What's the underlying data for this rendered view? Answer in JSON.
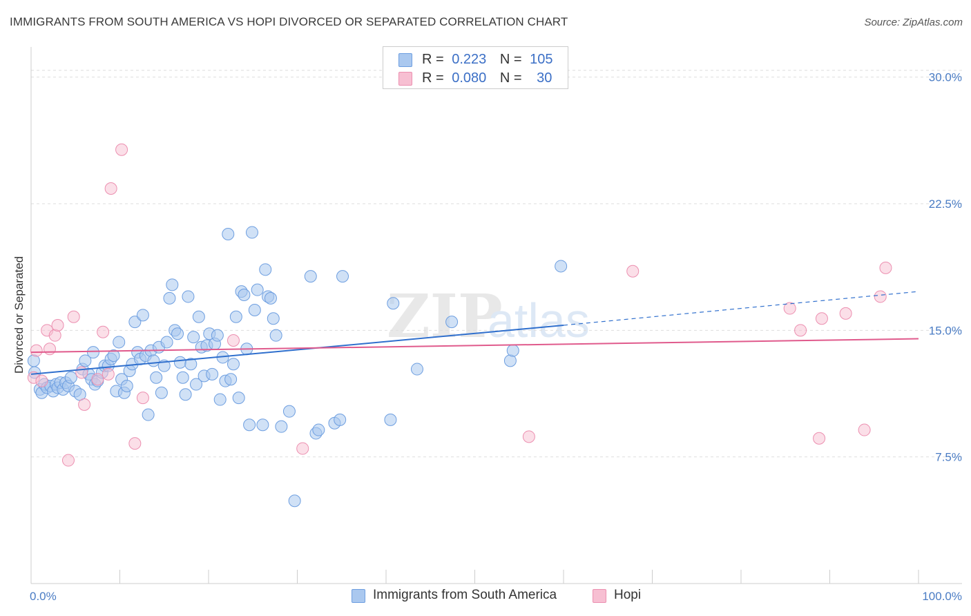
{
  "header": {
    "title": "IMMIGRANTS FROM SOUTH AMERICA VS HOPI DIVORCED OR SEPARATED CORRELATION CHART",
    "source": "Source: ZipAtlas.com"
  },
  "legend": {
    "rows": [
      {
        "r_label": "R =",
        "r_value": "0.223",
        "n_label": "N =",
        "n_value": "105"
      },
      {
        "r_label": "R =",
        "r_value": "0.080",
        "n_label": "N =",
        "n_value": "30"
      }
    ]
  },
  "bottom_legend": {
    "items": [
      {
        "label": "Immigrants from South America"
      },
      {
        "label": "Hopi"
      }
    ]
  },
  "colors": {
    "blue_fill": "#aac8ef",
    "blue_stroke": "#6d9ee0",
    "blue_line": "#2f6fcd",
    "pink_fill": "#f7bfd2",
    "pink_stroke": "#ec8fb0",
    "pink_line": "#e05a8c",
    "grid": "#dddddd",
    "axis_text": "#4a7cc4"
  },
  "chart_data": {
    "type": "scatter",
    "title": "IMMIGRANTS FROM SOUTH AMERICA VS HOPI DIVORCED OR SEPARATED CORRELATION CHART",
    "xlabel": "",
    "ylabel": "Divorced or Separated",
    "xlim": [
      0,
      100
    ],
    "ylim": [
      0,
      31.5
    ],
    "x_tick_labels": [
      "0.0%",
      "100.0%"
    ],
    "y_ticks": [
      7.5,
      15.0,
      22.5,
      30.0
    ],
    "y_tick_labels": [
      "7.5%",
      "15.0%",
      "22.5%",
      "30.0%"
    ],
    "grid": "horizontal dashed",
    "legend_position": "top-center",
    "series": [
      {
        "name": "Immigrants from South America",
        "color": "#aac8ef",
        "trend": {
          "x0": 0,
          "y0": 12.4,
          "x1": 60,
          "y1": 15.3,
          "dashed_to_x": 100,
          "dashed_to_y": 17.3
        },
        "points": [
          [
            0.3,
            13.2
          ],
          [
            0.4,
            12.5
          ],
          [
            1.0,
            11.5
          ],
          [
            1.2,
            11.3
          ],
          [
            1.5,
            11.8
          ],
          [
            1.8,
            11.6
          ],
          [
            2.2,
            11.7
          ],
          [
            2.5,
            11.4
          ],
          [
            2.8,
            11.8
          ],
          [
            3.0,
            11.6
          ],
          [
            3.3,
            11.9
          ],
          [
            3.6,
            11.5
          ],
          [
            3.9,
            11.9
          ],
          [
            4.2,
            11.7
          ],
          [
            4.5,
            12.2
          ],
          [
            5.0,
            11.4
          ],
          [
            5.5,
            11.2
          ],
          [
            5.8,
            12.7
          ],
          [
            6.1,
            13.2
          ],
          [
            6.5,
            12.4
          ],
          [
            6.8,
            12.1
          ],
          [
            7.0,
            13.7
          ],
          [
            7.2,
            11.8
          ],
          [
            7.5,
            12.0
          ],
          [
            8.0,
            12.5
          ],
          [
            8.3,
            12.9
          ],
          [
            8.7,
            12.9
          ],
          [
            9.0,
            13.3
          ],
          [
            9.3,
            13.5
          ],
          [
            9.6,
            11.4
          ],
          [
            9.9,
            14.3
          ],
          [
            10.2,
            12.1
          ],
          [
            10.5,
            11.3
          ],
          [
            10.8,
            11.7
          ],
          [
            11.1,
            12.6
          ],
          [
            11.4,
            13.0
          ],
          [
            11.7,
            15.5
          ],
          [
            12.0,
            13.7
          ],
          [
            12.3,
            13.3
          ],
          [
            12.6,
            15.9
          ],
          [
            12.9,
            13.5
          ],
          [
            13.2,
            10.0
          ],
          [
            13.5,
            13.8
          ],
          [
            13.8,
            13.2
          ],
          [
            14.1,
            12.2
          ],
          [
            14.4,
            14.0
          ],
          [
            14.7,
            11.3
          ],
          [
            15.0,
            12.9
          ],
          [
            15.3,
            14.3
          ],
          [
            15.6,
            16.9
          ],
          [
            15.9,
            17.7
          ],
          [
            16.2,
            15.0
          ],
          [
            16.5,
            14.8
          ],
          [
            16.8,
            13.1
          ],
          [
            17.1,
            12.2
          ],
          [
            17.4,
            11.2
          ],
          [
            17.7,
            17.0
          ],
          [
            18.0,
            13.0
          ],
          [
            18.3,
            14.6
          ],
          [
            18.6,
            11.8
          ],
          [
            18.9,
            15.8
          ],
          [
            19.2,
            14.0
          ],
          [
            19.5,
            12.3
          ],
          [
            19.8,
            14.1
          ],
          [
            20.1,
            14.8
          ],
          [
            20.4,
            12.4
          ],
          [
            20.7,
            14.2
          ],
          [
            21.0,
            14.7
          ],
          [
            21.3,
            10.9
          ],
          [
            21.6,
            13.4
          ],
          [
            21.9,
            12.0
          ],
          [
            22.2,
            20.7
          ],
          [
            22.5,
            12.1
          ],
          [
            22.8,
            13.0
          ],
          [
            23.1,
            15.8
          ],
          [
            23.4,
            11.0
          ],
          [
            23.7,
            17.3
          ],
          [
            24.0,
            17.1
          ],
          [
            24.3,
            13.9
          ],
          [
            24.6,
            9.4
          ],
          [
            24.9,
            20.8
          ],
          [
            25.2,
            16.2
          ],
          [
            25.5,
            17.4
          ],
          [
            26.1,
            9.4
          ],
          [
            26.4,
            18.6
          ],
          [
            26.7,
            17.0
          ],
          [
            27.0,
            16.9
          ],
          [
            27.3,
            15.7
          ],
          [
            27.6,
            14.7
          ],
          [
            28.2,
            9.3
          ],
          [
            29.1,
            10.2
          ],
          [
            29.7,
            4.9
          ],
          [
            31.5,
            18.2
          ],
          [
            32.1,
            8.9
          ],
          [
            32.4,
            9.1
          ],
          [
            34.2,
            9.5
          ],
          [
            34.8,
            9.7
          ],
          [
            35.1,
            18.2
          ],
          [
            40.5,
            9.7
          ],
          [
            40.8,
            16.6
          ],
          [
            43.5,
            12.7
          ],
          [
            47.4,
            15.5
          ],
          [
            54.0,
            13.2
          ],
          [
            54.3,
            13.8
          ],
          [
            59.7,
            18.8
          ]
        ]
      },
      {
        "name": "Hopi",
        "color": "#f7bfd2",
        "trend": {
          "x0": 0,
          "y0": 13.7,
          "x1": 100,
          "y1": 14.5
        },
        "points": [
          [
            0.3,
            12.2
          ],
          [
            0.6,
            13.8
          ],
          [
            1.2,
            12.0
          ],
          [
            1.8,
            15.0
          ],
          [
            2.1,
            13.9
          ],
          [
            2.7,
            14.7
          ],
          [
            3.0,
            15.3
          ],
          [
            4.2,
            7.3
          ],
          [
            4.8,
            15.8
          ],
          [
            5.7,
            12.5
          ],
          [
            6.0,
            10.6
          ],
          [
            7.5,
            12.1
          ],
          [
            8.1,
            14.9
          ],
          [
            8.7,
            12.4
          ],
          [
            9.0,
            23.4
          ],
          [
            10.2,
            25.7
          ],
          [
            11.7,
            8.3
          ],
          [
            12.6,
            11.0
          ],
          [
            22.8,
            14.4
          ],
          [
            30.6,
            8.0
          ],
          [
            56.1,
            8.7
          ],
          [
            67.8,
            18.5
          ],
          [
            85.5,
            16.3
          ],
          [
            86.7,
            15.0
          ],
          [
            88.8,
            8.6
          ],
          [
            89.1,
            15.7
          ],
          [
            91.8,
            16.0
          ],
          [
            93.9,
            9.1
          ],
          [
            95.7,
            17.0
          ],
          [
            96.3,
            18.7
          ]
        ]
      }
    ]
  }
}
